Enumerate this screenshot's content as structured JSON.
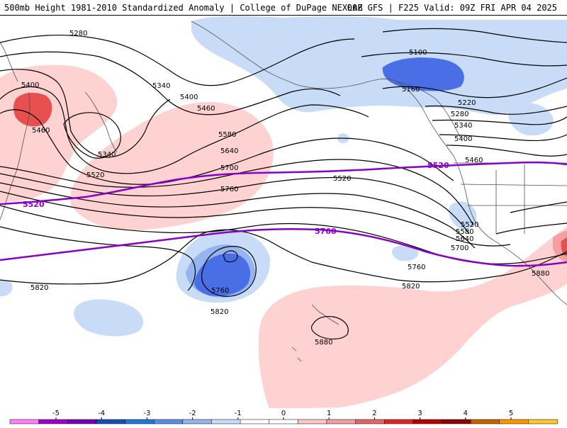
{
  "header": {
    "title_left": "500mb Height 1981-2010 Standardized Anomaly | College of DuPage NEXLAB",
    "title_right": "00Z GFS | F225 Valid: 09Z FRI APR 04 2025"
  },
  "contour_labels": [
    "5280",
    "5400",
    "5340",
    "5460",
    "5340",
    "5400",
    "5460",
    "5520",
    "5580",
    "5640",
    "5700",
    "5760",
    "5820",
    "5100",
    "5160",
    "5220",
    "5280",
    "5340",
    "5400",
    "5460",
    "5520",
    "5580",
    "5640",
    "5700",
    "5760",
    "5820",
    "5880",
    "5880",
    "5760",
    "5820",
    "5520"
  ],
  "highlight_labels": [
    "5520",
    "5520",
    "5760"
  ],
  "colorbar": {
    "ticks": [
      "-5",
      "-4",
      "-3",
      "-2",
      "-1",
      "0",
      "1",
      "2",
      "3",
      "4",
      "5"
    ],
    "colors": [
      "#ff80ff",
      "#a000c8",
      "#7800b4",
      "#1450b4",
      "#1e78dc",
      "#5a8ce6",
      "#96b4f0",
      "#c8dcf8",
      "#ffffff",
      "#ffffff",
      "#ffc8c8",
      "#f0a0a0",
      "#e66464",
      "#dc2828",
      "#b40000",
      "#8c0000",
      "#c86400",
      "#ff9600",
      "#ffc832"
    ]
  },
  "style": {
    "contour_color": "#000000",
    "highlight_color": "#8a00c8",
    "neg_light": "#c8dcf8",
    "neg_mid": "#96b4f0",
    "neg_strong": "#4a6ee6",
    "pos_light": "#ffd2d2",
    "pos_mid": "#f5a0a0",
    "pos_strong": "#e85050"
  }
}
